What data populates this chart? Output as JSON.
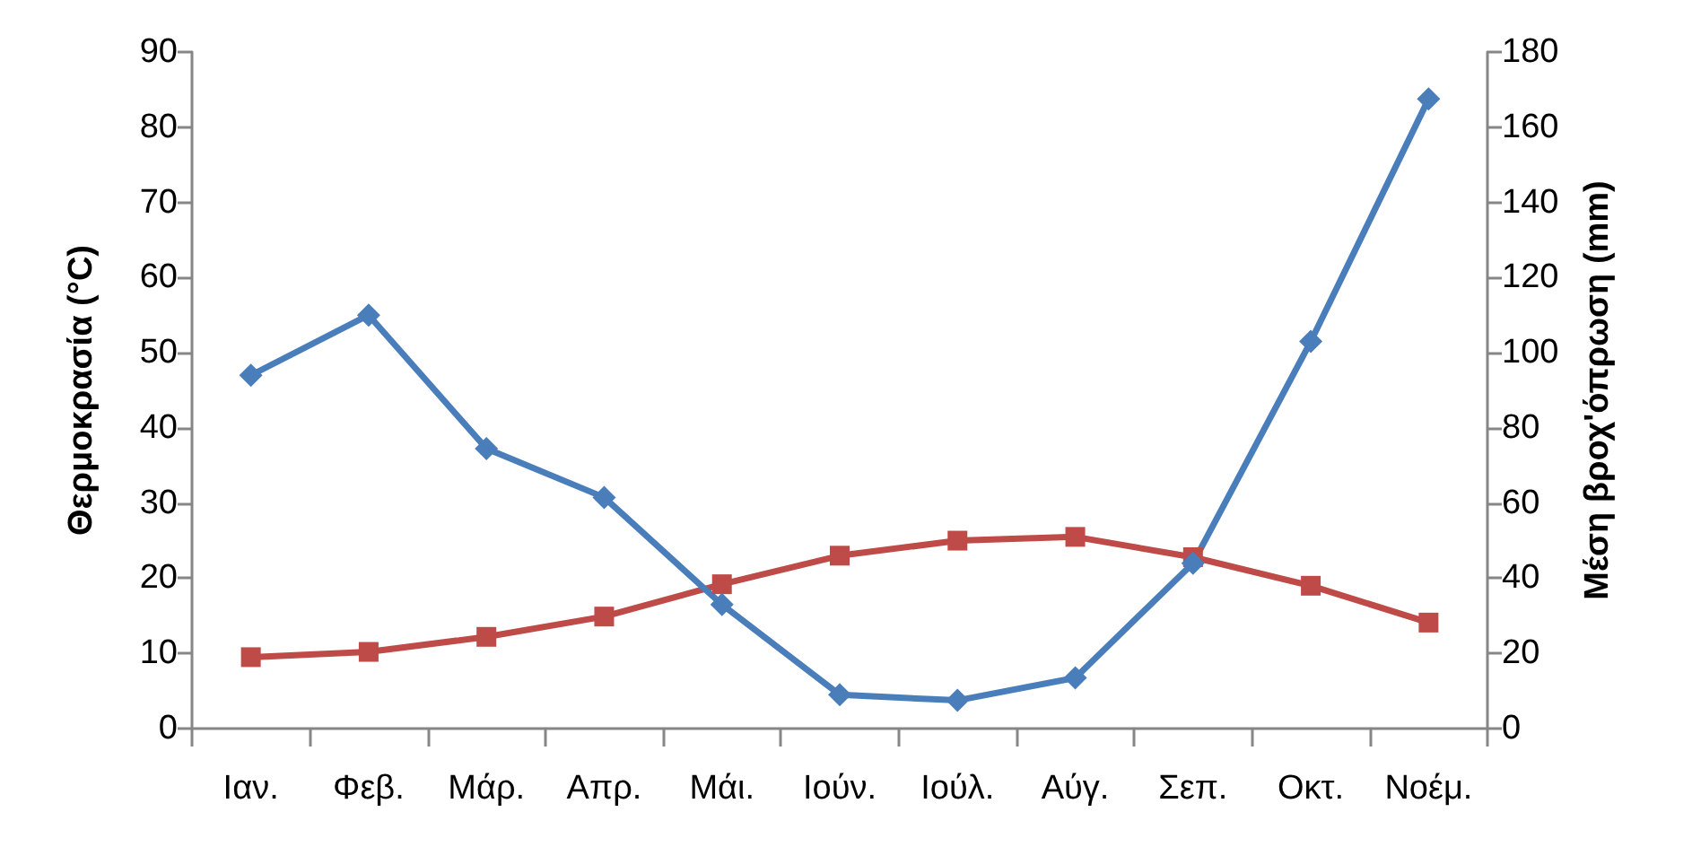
{
  "chart_data": {
    "type": "line",
    "ylabel": "Θερμοκρασία (°C)",
    "y2label": "Μέση βροχ'όπρωση (mm)",
    "categories": [
      "Ιαν.",
      "Φεβ.",
      "Μάρ.",
      "Απρ.",
      "Μάι.",
      "Ιούν.",
      "Ιούλ.",
      "Αύγ.",
      "Σεπ.",
      "Οκτ.",
      "Νοέμ."
    ],
    "series": [
      {
        "color": "#be4b48",
        "marker": "square",
        "values": [
          9.5,
          10.2,
          12.2,
          14.9,
          19.2,
          23,
          25,
          25.5,
          22.8,
          19,
          14.1
        ]
      },
      {
        "color": "#4a7ebb",
        "marker": "diamond",
        "axis": "y2",
        "values": [
          94,
          110,
          74.5,
          61.5,
          33,
          9,
          7.5,
          13.5,
          44,
          103,
          167.5
        ]
      }
    ],
    "ylim": [
      0,
      90
    ],
    "yticks": [
      0,
      10,
      20,
      30,
      40,
      50,
      60,
      70,
      80,
      90
    ],
    "y2lim": [
      0,
      180
    ],
    "y2ticks": [
      0,
      20,
      40,
      60,
      80,
      100,
      120,
      140,
      160,
      180
    ],
    "grid": false
  }
}
